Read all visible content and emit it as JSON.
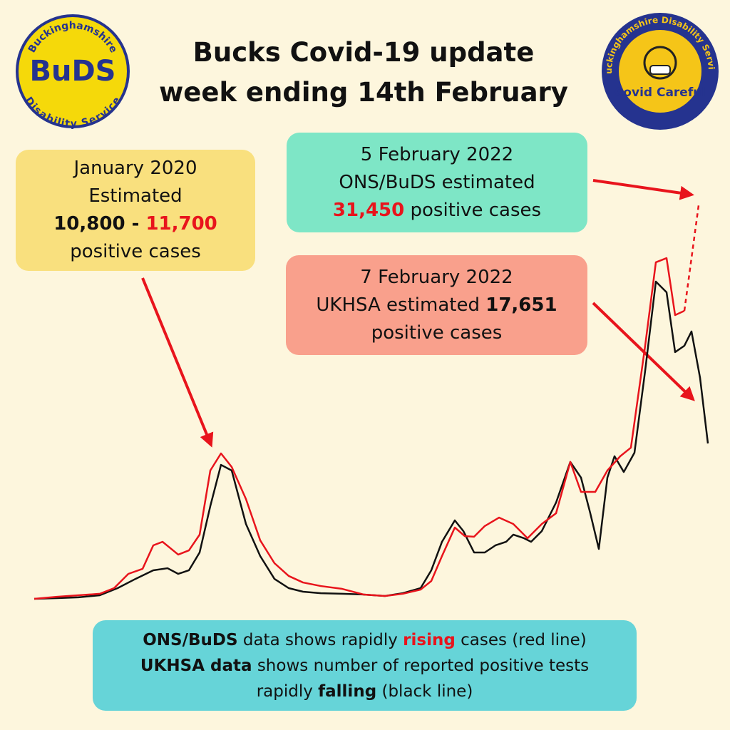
{
  "header": {
    "title_line1": "Bucks Covid-19 update",
    "title_line2": "week ending 14th February"
  },
  "logos": {
    "left": {
      "top": "Buckinghamshire",
      "center": "BuDS",
      "bottom": "Disability Service"
    },
    "right": {
      "ring": "Buckinghamshire Disability Service",
      "banner": "Covid Careful"
    }
  },
  "callouts": {
    "january": {
      "line1": "January 2020",
      "line2": "Estimated",
      "low": "10,800 - ",
      "high": "11,700",
      "line4": "positive cases"
    },
    "ons": {
      "line1": "5 February 2022",
      "line2": "ONS/BuDS estimated",
      "value": "31,450",
      "rest": " positive cases"
    },
    "ukhsa": {
      "line1": "7 February 2022",
      "line2_text": "UKHSA estimated ",
      "value": "17,651",
      "line3": "positive cases"
    }
  },
  "footer": {
    "l1_bold": "ONS/BuDS",
    "l1_text": " data shows rapidly ",
    "l1_red": "rising",
    "l1_end": " cases (red line)",
    "l2_bold": "UKHSA data",
    "l2_text": " shows number of reported positive tests",
    "l3_text": "rapidly ",
    "l3_bold": "falling",
    "l3_end": " (black line)"
  },
  "chart_data": {
    "type": "line",
    "xlim": [
      0,
      945
    ],
    "ylim": [
      0,
      33000
    ],
    "series": [
      {
        "color": "#111111",
        "x": [
          0,
          32,
          62,
          92,
          117,
          142,
          167,
          187,
          202,
          217,
          232,
          247,
          262,
          277,
          297,
          317,
          337,
          357,
          377,
          402,
          432,
          462,
          492,
          517,
          542,
          557,
          572,
          590,
          602,
          617,
          632,
          647,
          662,
          672,
          687,
          697,
          712,
          732,
          752,
          767,
          780,
          792,
          804,
          814,
          827,
          842,
          857,
          872,
          887,
          899,
          912,
          922,
          934,
          945
        ],
        "values": [
          0,
          60,
          120,
          290,
          870,
          1620,
          2320,
          2490,
          2030,
          2320,
          3770,
          7540,
          10900,
          10440,
          6090,
          3480,
          1620,
          870,
          580,
          460,
          410,
          350,
          230,
          460,
          870,
          2320,
          4640,
          6380,
          5510,
          3770,
          3770,
          4350,
          4640,
          5220,
          4930,
          4640,
          5510,
          7830,
          11140,
          9860,
          6960,
          4060,
          9860,
          11600,
          10320,
          11890,
          18560,
          25810,
          24940,
          20070,
          20590,
          21750,
          17980,
          12640
        ]
      },
      {
        "color": "#e8141c",
        "x": [
          0,
          32,
          62,
          92,
          112,
          132,
          152,
          167,
          180,
          202,
          217,
          232,
          247,
          262,
          277,
          297,
          317,
          337,
          357,
          377,
          402,
          432,
          462,
          492,
          517,
          542,
          557,
          572,
          590,
          604,
          617,
          632,
          652,
          672,
          692,
          712,
          732,
          752,
          767,
          787,
          804,
          822,
          837,
          857,
          872,
          887,
          899,
          912,
          932
        ],
        "values": [
          0,
          170,
          290,
          410,
          870,
          2030,
          2440,
          4350,
          4640,
          3600,
          3940,
          5220,
          10440,
          11830,
          10730,
          8120,
          4760,
          2900,
          1860,
          1330,
          1040,
          810,
          350,
          230,
          410,
          750,
          1450,
          3480,
          5800,
          5100,
          5050,
          5920,
          6610,
          6090,
          4930,
          6090,
          6960,
          11140,
          8700,
          8700,
          10440,
          11600,
          12300,
          20590,
          27380,
          27720,
          23080,
          23430,
          32020
        ],
        "dashed_last_segment": true
      }
    ]
  }
}
